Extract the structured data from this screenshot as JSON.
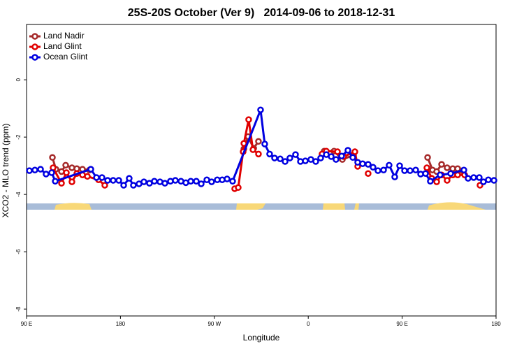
{
  "chart_data": {
    "type": "line",
    "title": "25S-20S October (Ver 9)   2014-09-06 to 2018-12-31",
    "xlabel": "Longitude",
    "ylabel": "XCO2 - MLO trend (ppm)",
    "xlim": [
      90,
      540
    ],
    "xticks": [
      {
        "value": 90,
        "label": "90 E"
      },
      {
        "value": 180,
        "label": "180"
      },
      {
        "value": 270,
        "label": "90 W"
      },
      {
        "value": 360,
        "label": "0"
      },
      {
        "value": 450,
        "label": "90 E"
      },
      {
        "value": 540,
        "label": "180"
      }
    ],
    "ylim": [
      -8.24,
      1.93
    ],
    "yticks": [
      0,
      -2,
      -4,
      -6,
      -8
    ],
    "legend": "upper left",
    "series": [
      {
        "name": "Land Nadir",
        "color": "#a52a2a",
        "x": [
          114.8,
          118.1,
          123.5,
          127.5,
          133.5,
          138.2,
          143.6,
          150.3,
          null,
          298.3,
          302.3,
          307.7,
          312.3,
          null,
          375.3,
          384.7,
          392.7,
          403.4,
          null,
          474.4,
          479.1,
          483.1,
          487.8,
          493.1,
          498.5,
          503.2,
          507.9
        ],
        "values": [
          -2.71,
          -3.12,
          -3.2,
          -2.98,
          -3.07,
          -3.1,
          -3.12,
          -3.15,
          null,
          -2.41,
          -1.98,
          -2.39,
          -2.15,
          null,
          -2.49,
          -2.49,
          -2.78,
          -2.63,
          null,
          -2.71,
          -3.15,
          -3.2,
          -2.95,
          -3.07,
          -3.1,
          -3.1,
          -3.17
        ]
      },
      {
        "name": "Land Glint",
        "color": "#e00000",
        "x": [
          115.4,
          123.5,
          128.2,
          133.5,
          138.2,
          143.6,
          148.3,
          159.0,
          165.0,
          null,
          289.5,
          292.9,
          297.6,
          298.3,
          302.9,
          307.0,
          312.3,
          null,
          373.2,
          377.3,
          388.0,
          394.0,
          404.7,
          407.4,
          null,
          417.4,
          null,
          473.7,
          478.4,
          483.1,
          487.8,
          493.1,
          498.5,
          503.2,
          509.9,
          null,
          524.6
        ],
        "values": [
          -3.07,
          -3.61,
          -3.24,
          -3.56,
          -3.27,
          -3.32,
          -3.37,
          -3.49,
          -3.68,
          null,
          -3.8,
          -3.76,
          -2.51,
          -2.22,
          -1.39,
          -2.44,
          -2.59,
          null,
          -2.59,
          -2.49,
          -2.51,
          -2.68,
          -2.51,
          -3.02,
          null,
          -3.27,
          null,
          -3.07,
          -3.44,
          -3.56,
          -3.32,
          -3.51,
          -3.32,
          -3.32,
          -3.32,
          null,
          -3.68
        ]
      },
      {
        "name": "Ocean Glint",
        "color": "#0000e0",
        "x": [
          92.7,
          98.0,
          103.4,
          108.7,
          114.1,
          117.5,
          151.6,
          157.0,
          162.3,
          167.7,
          173.0,
          178.4,
          183.1,
          188.4,
          192.4,
          197.8,
          202.5,
          207.8,
          212.5,
          217.9,
          222.6,
          227.9,
          232.6,
          238.0,
          242.7,
          247.4,
          252.7,
          257.4,
          262.8,
          267.4,
          272.8,
          277.5,
          282.2,
          287.5,
          314.3,
          318.3,
          323.0,
          327.7,
          333.1,
          337.8,
          342.4,
          347.8,
          352.5,
          357.2,
          362.5,
          367.2,
          371.9,
          377.3,
          382.0,
          386.6,
          392.0,
          398.0,
          402.7,
          407.4,
          412.1,
          417.4,
          422.1,
          426.8,
          432.2,
          437.5,
          442.9,
          447.6,
          452.3,
          457.6,
          463.0,
          467.7,
          472.4,
          477.0,
          486.4,
          496.5,
          509.2,
          513.2,
          518.6,
          523.9,
          527.9,
          532.6,
          538.0
        ],
        "values": [
          -3.17,
          -3.15,
          -3.12,
          -3.29,
          -3.24,
          -3.54,
          -3.12,
          -3.41,
          -3.41,
          -3.51,
          -3.51,
          -3.51,
          -3.68,
          -3.44,
          -3.68,
          -3.63,
          -3.56,
          -3.61,
          -3.54,
          -3.56,
          -3.61,
          -3.54,
          -3.51,
          -3.54,
          -3.59,
          -3.54,
          -3.54,
          -3.63,
          -3.49,
          -3.56,
          -3.49,
          -3.49,
          -3.46,
          -3.54,
          -1.05,
          -2.24,
          -2.59,
          -2.73,
          -2.76,
          -2.85,
          -2.73,
          -2.61,
          -2.85,
          -2.83,
          -2.78,
          -2.85,
          -2.73,
          -2.61,
          -2.68,
          -2.78,
          -2.66,
          -2.46,
          -2.71,
          -2.88,
          -2.93,
          -2.95,
          -3.05,
          -3.17,
          -3.15,
          -2.98,
          -3.39,
          -3.0,
          -3.17,
          -3.17,
          -3.15,
          -3.29,
          -3.27,
          -3.54,
          -3.32,
          -3.27,
          -3.15,
          -3.44,
          -3.41,
          -3.41,
          -3.56,
          -3.49,
          -3.51
        ]
      }
    ]
  }
}
